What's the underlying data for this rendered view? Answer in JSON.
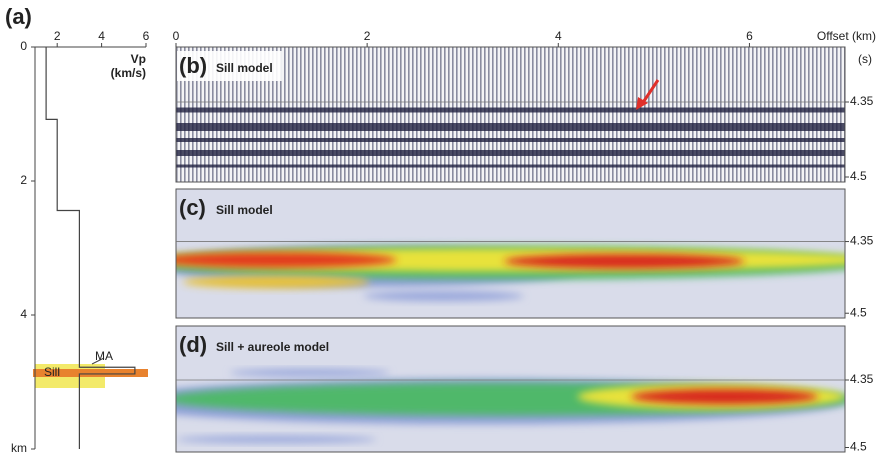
{
  "chart_data": [
    {
      "type": "line",
      "panel_label": "(a)",
      "x_label": "Vp",
      "x_unit": "(km/s)",
      "xlim": [
        1,
        6
      ],
      "xticks": [
        2,
        4,
        6
      ],
      "ylim": [
        0,
        6
      ],
      "y_inverted": true,
      "yticks": [
        0,
        2,
        4,
        {
          "value": 6,
          "label": "km"
        }
      ],
      "series": [
        {
          "color": "#444444",
          "x": [
            1.5,
            1.5,
            2,
            2,
            3,
            3,
            5.5,
            5.5,
            3,
            3
          ],
          "values": [
            0,
            1.08,
            1.08,
            2.44,
            2.44,
            4.78,
            4.78,
            4.88,
            4.88,
            6
          ]
        }
      ],
      "annotations": [
        "Sill",
        "MA"
      ]
    },
    {
      "type": "seismic",
      "panel_label": "(b)",
      "title": "Sill model",
      "x_label": "Offset (km)",
      "y_unit": "(s)",
      "xlim": [
        0,
        7
      ],
      "xticks": [
        0,
        2,
        4,
        6
      ],
      "ylim": [
        4.24,
        4.51
      ],
      "yticks": [
        4.35,
        4.5
      ]
    },
    {
      "type": "heatmap",
      "panel_label": "(c)",
      "title": "Sill model",
      "xlim": [
        0,
        7
      ],
      "ylim": [
        4.24,
        4.51
      ],
      "yticks": [
        4.35,
        4.5
      ]
    },
    {
      "type": "heatmap",
      "panel_label": "(d)",
      "title": "Sill + aureole model",
      "xlim": [
        0,
        7
      ],
      "ylim": [
        4.23,
        4.51
      ],
      "yticks": [
        4.35,
        4.5
      ]
    }
  ]
}
